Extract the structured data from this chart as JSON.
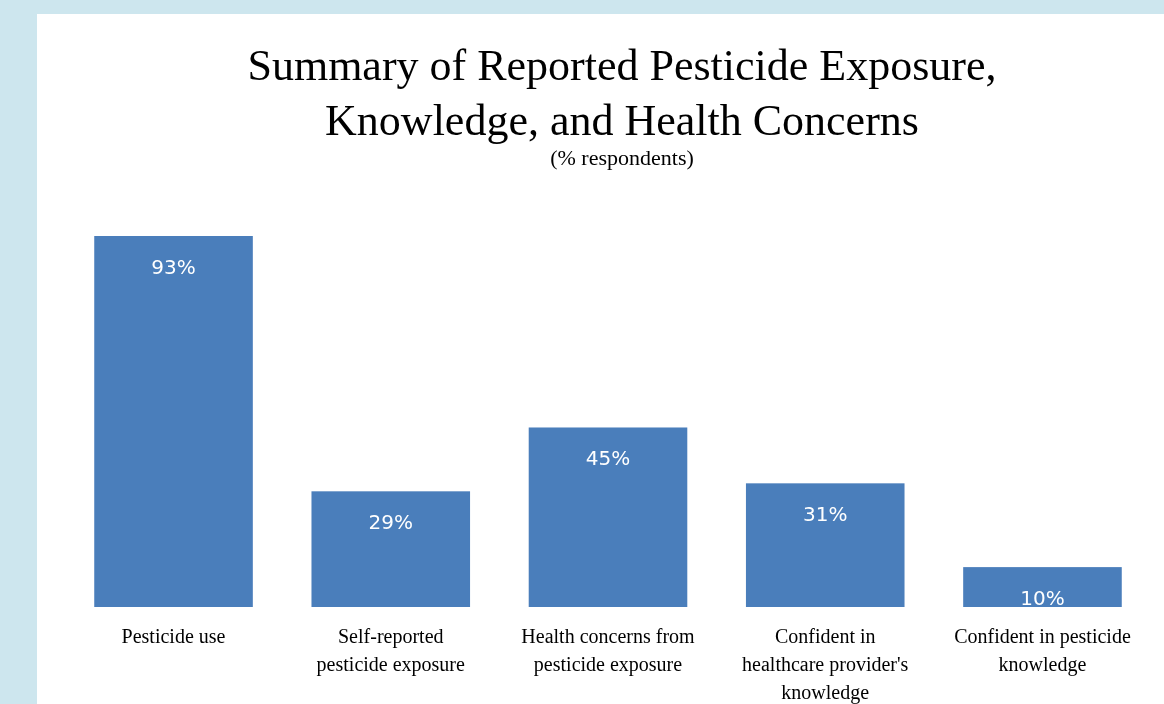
{
  "chart_data": {
    "type": "bar",
    "title": "Summary of Reported Pesticide Exposure, Knowledge, and Health Concerns",
    "subtitle": "(% respondents)",
    "categories": [
      "Pesticide use",
      "Self-reported pesticide exposure",
      "Health concerns from pesticide exposure",
      "Confident in healthcare provider's knowledge",
      "Confident in pesticide knowledge"
    ],
    "values": [
      93,
      29,
      45,
      31,
      10
    ],
    "value_labels": [
      "93%",
      "29%",
      "45%",
      "31%",
      "10%"
    ],
    "color": "#4a7ebb"
  }
}
